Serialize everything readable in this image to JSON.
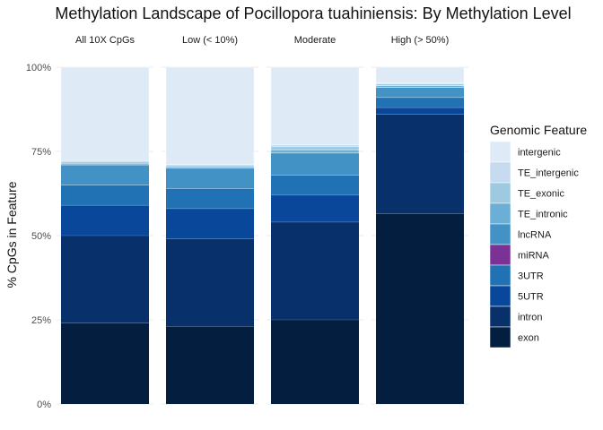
{
  "chart_data": {
    "type": "bar",
    "stacked": true,
    "faceted": true,
    "title": "Methylation Landscape of Pocillopora tuahiniensis: By Methylation Level",
    "ylabel": "% CpGs in Feature",
    "xlabel": "",
    "ylim": [
      0,
      100
    ],
    "y_ticks": [
      "0%",
      "25%",
      "50%",
      "75%",
      "100%"
    ],
    "y_tick_values": [
      0,
      25,
      50,
      75,
      100
    ],
    "grid": true,
    "legend": {
      "title": "Genomic Feature",
      "placement": "right",
      "entries": [
        "intergenic",
        "TE_intergenic",
        "TE_exonic",
        "TE_intronic",
        "lncRNA",
        "miRNA",
        "3UTR",
        "5UTR",
        "intron",
        "exon"
      ]
    },
    "facets": [
      "All 10X CpGs",
      "Low (< 10%)",
      "Moderate",
      "High (> 50%)"
    ],
    "series": [
      {
        "name": "exon",
        "color": "#041e3f",
        "values": [
          24,
          23,
          25,
          56.5
        ]
      },
      {
        "name": "intron",
        "color": "#08306b",
        "values": [
          26,
          26,
          29,
          29.5
        ]
      },
      {
        "name": "5UTR",
        "color": "#08479a",
        "values": [
          9,
          9,
          8,
          2
        ]
      },
      {
        "name": "3UTR",
        "color": "#2171b5",
        "values": [
          6,
          6,
          6,
          3
        ]
      },
      {
        "name": "miRNA",
        "color": "#7b3294",
        "values": [
          0,
          0,
          0,
          0
        ]
      },
      {
        "name": "lncRNA",
        "color": "#4292c6",
        "values": [
          6,
          6,
          6.5,
          3
        ]
      },
      {
        "name": "TE_intronic",
        "color": "#6baed6",
        "values": [
          0.5,
          0.5,
          1,
          0.5
        ]
      },
      {
        "name": "TE_exonic",
        "color": "#9ecae1",
        "values": [
          0.5,
          0.5,
          1,
          0.5
        ]
      },
      {
        "name": "TE_intergenic",
        "color": "#c6dbef",
        "values": [
          0.3,
          0.2,
          0.5,
          0.3
        ]
      },
      {
        "name": "intergenic",
        "color": "#deebf7",
        "values": [
          27.7,
          28.8,
          23,
          4.7
        ]
      }
    ]
  }
}
